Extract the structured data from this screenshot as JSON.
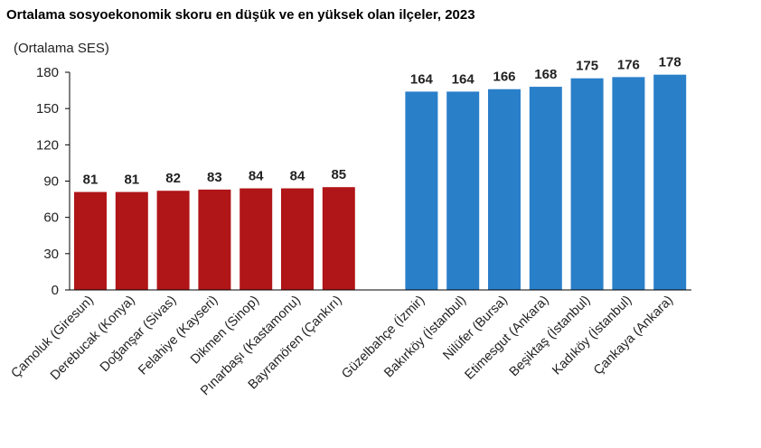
{
  "chart_data": {
    "type": "bar",
    "title": "Ortalama sosyoekonomik skoru en düşük ve en yüksek olan ilçeler, 2023",
    "ylabel": "(Ortalama SES)",
    "xlabel": "",
    "ylim": [
      0,
      180
    ],
    "yticks": [
      "0",
      "30",
      "60",
      "90",
      "120",
      "150",
      "180"
    ],
    "grid": false,
    "groups": [
      {
        "color": "#b01518",
        "categories": [
          "Çamoluk (Giresun)",
          "Derebucak (Konya)",
          "Doğanşar (Sivas)",
          "Felahiye (Kayseri)",
          "Dikmen (Sinop)",
          "Pınarbaşı (Kastamonu)",
          "Bayramören (Çankırı)"
        ],
        "values": [
          81,
          81,
          82,
          83,
          84,
          84,
          85
        ]
      },
      {
        "color": "#2a7fc9",
        "categories": [
          "Güzelbahçe (İzmir)",
          "Bakırköy (İstanbul)",
          "Nilüfer (Bursa)",
          "Etimesgut (Ankara)",
          "Beşiktaş (İstanbul)",
          "Kadıköy (İstanbul)",
          "Çankaya (Ankara)"
        ],
        "values": [
          164,
          164,
          166,
          168,
          175,
          176,
          178
        ]
      }
    ]
  }
}
